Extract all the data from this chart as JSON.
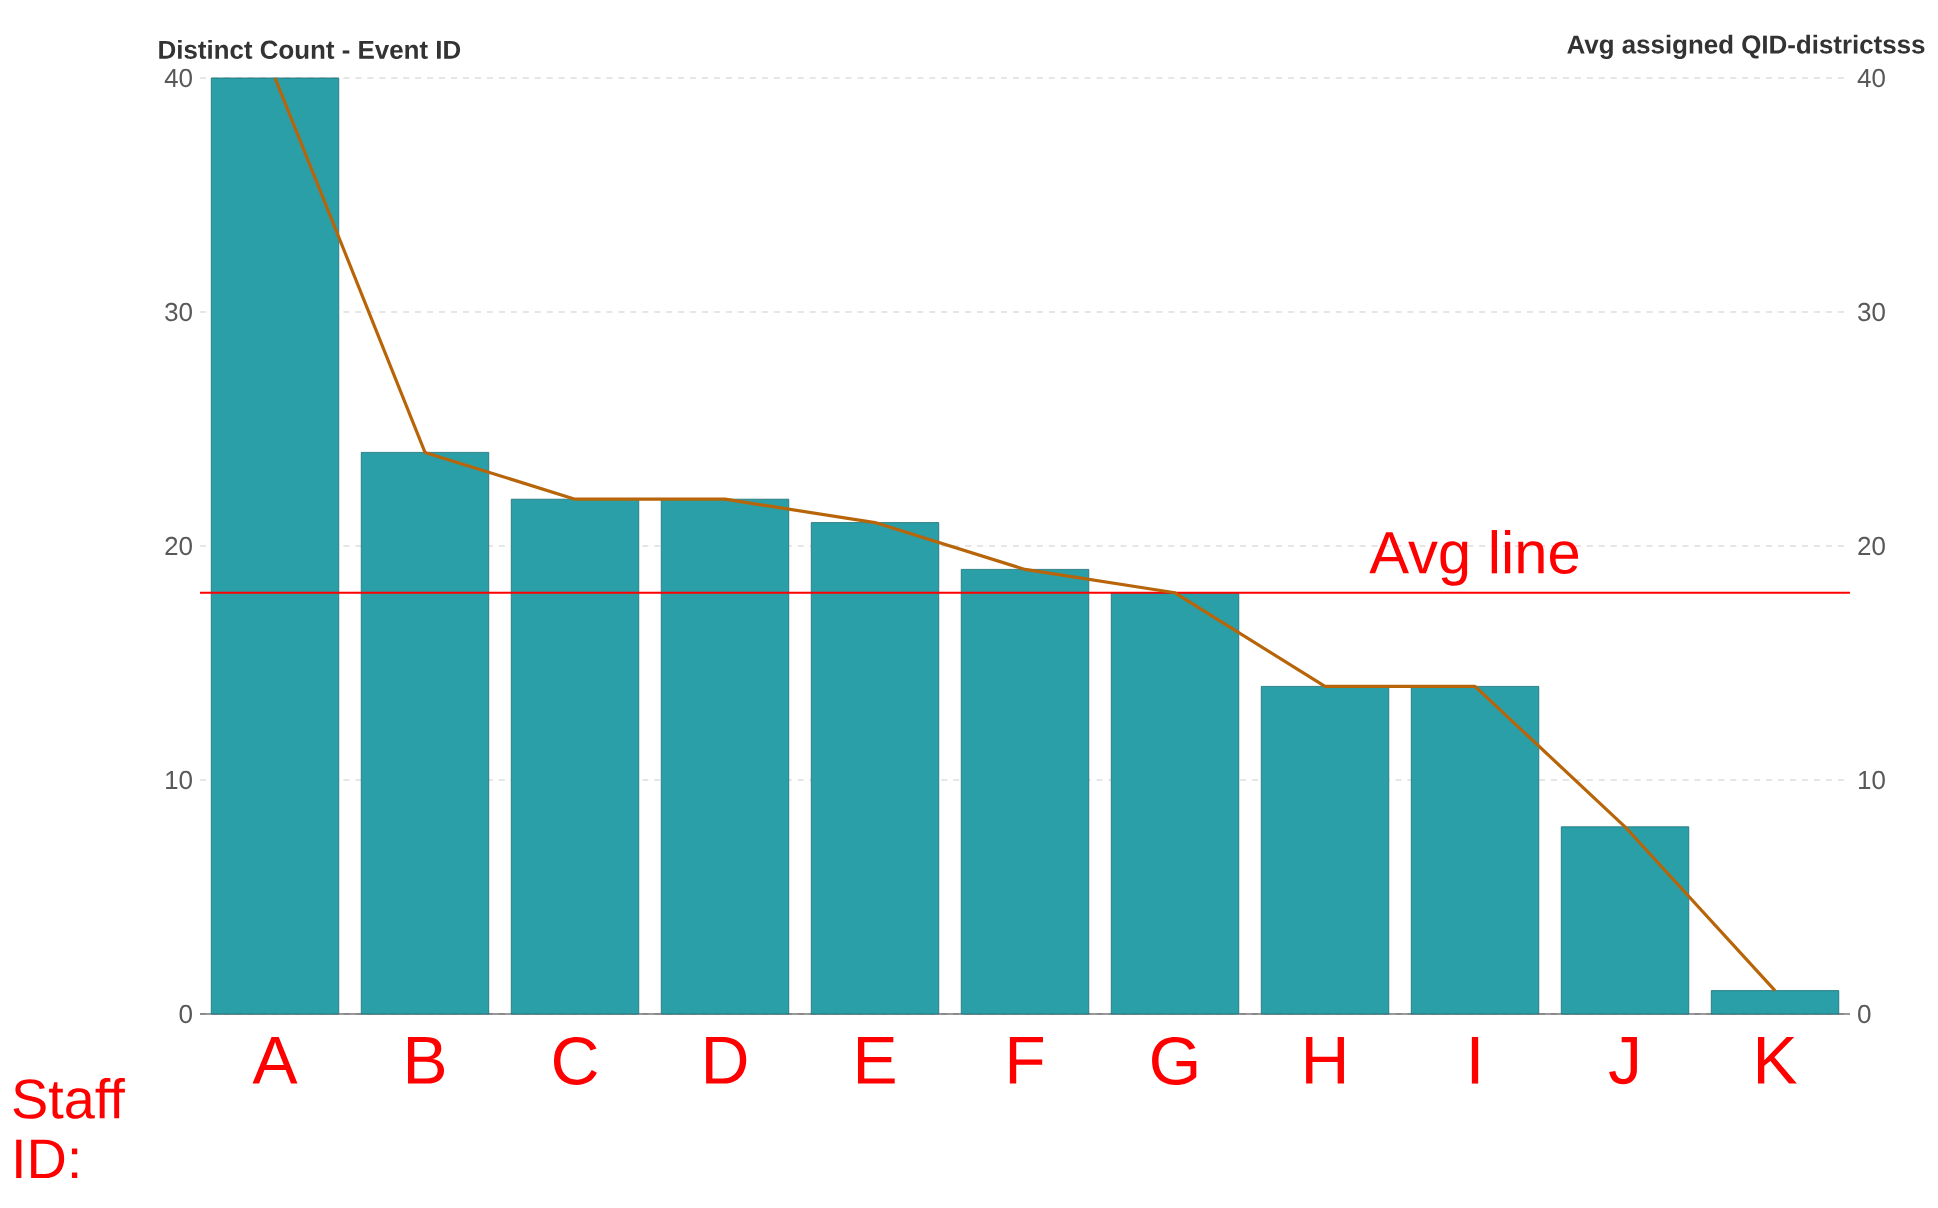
{
  "chart_data": {
    "type": "bar",
    "ylabel": "Distinct Count - Event ID",
    "y2label": "Avg assigned QID-districtsss",
    "xlabel": "Staff ID:",
    "categories": [
      "A",
      "B",
      "C",
      "D",
      "E",
      "F",
      "G",
      "H",
      "I",
      "J",
      "K"
    ],
    "series": [
      {
        "color": "#2a9fa8",
        "values": [
          40,
          24,
          22,
          22,
          21,
          19,
          18,
          14,
          14,
          8,
          1
        ]
      },
      {
        "type": "line",
        "axis": "y2",
        "color": "#b8650a",
        "values": [
          40,
          24,
          22,
          22,
          21,
          19,
          18,
          14,
          14,
          8,
          1
        ]
      }
    ],
    "ylim": [
      0,
      40
    ],
    "yticks": [
      0,
      10,
      20,
      30,
      40
    ],
    "y2lim": [
      0,
      40
    ],
    "y2ticks": [
      0,
      10,
      20,
      30,
      40
    ],
    "grid": "y",
    "ref_lines": [
      {
        "axis": "y",
        "value": 18,
        "label": "Avg line",
        "color": "#ff0000"
      }
    ]
  }
}
